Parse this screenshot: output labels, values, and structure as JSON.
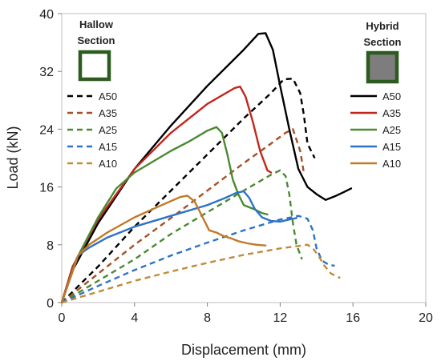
{
  "chart_data": {
    "type": "line",
    "title": "",
    "xlabel": "Displacement (mm)",
    "ylabel": "Load (kN)",
    "xlim": [
      0,
      20
    ],
    "ylim": [
      0,
      40
    ],
    "xticks": [
      0,
      4,
      8,
      12,
      16,
      20
    ],
    "yticks": [
      0,
      8,
      16,
      24,
      32,
      40
    ],
    "grid": false,
    "annotations": {
      "left_line1": "Hallow",
      "left_line2": "Section",
      "right_line1": "Hybrid",
      "right_line2": "Section"
    },
    "legend_left": {
      "placement": "top-left",
      "items": [
        "A50",
        "A35",
        "A25",
        "A15",
        "A10"
      ]
    },
    "legend_right": {
      "placement": "top-right",
      "items": [
        "A50",
        "A35",
        "A25",
        "A15",
        "A10"
      ]
    },
    "series": [
      {
        "name": "A50",
        "group": "Hybrid Section",
        "color": "#000000",
        "dashed": false,
        "x": [
          0,
          0.5,
          2,
          4,
          6,
          8,
          10,
          10.8,
          11.2,
          11.6,
          12,
          12.5,
          13,
          13.5,
          14,
          14.5,
          15,
          15.5,
          15.9
        ],
        "y": [
          0,
          4,
          11,
          18.5,
          24.5,
          30,
          35,
          37.2,
          37.3,
          35,
          30,
          24,
          18.5,
          16,
          15,
          14.2,
          14.7,
          15.3,
          15.8
        ]
      },
      {
        "name": "A35",
        "group": "Hybrid Section",
        "color": "#c0281e",
        "dashed": false,
        "x": [
          0,
          0.6,
          2,
          4,
          6,
          8,
          9.5,
          9.8,
          10.1,
          10.5,
          10.9,
          11.3,
          11.5
        ],
        "y": [
          0,
          5,
          11.5,
          18.5,
          23.5,
          27.5,
          29.7,
          29.9,
          28.5,
          25,
          21,
          18.3,
          18
        ]
      },
      {
        "name": "A25",
        "group": "Hybrid Section",
        "color": "#4a8a32",
        "dashed": false,
        "x": [
          0,
          0.8,
          2,
          3,
          4,
          5,
          6,
          7,
          8,
          8.5,
          8.8,
          9.1,
          9.4,
          9.7,
          10,
          10.5,
          11,
          11.3
        ],
        "y": [
          0,
          6,
          11.8,
          15.8,
          18,
          19.5,
          21,
          22.3,
          23.8,
          24.3,
          23.5,
          20.5,
          17,
          15,
          13.5,
          13,
          12.4,
          12.2
        ]
      },
      {
        "name": "A15",
        "group": "Hybrid Section",
        "color": "#2e73c8",
        "dashed": false,
        "x": [
          0,
          0.9,
          1.5,
          2.5,
          4,
          6,
          8,
          9,
          9.6,
          10,
          10.3,
          10.6,
          11,
          11.5,
          12,
          12.5,
          12.9
        ],
        "y": [
          0,
          6.5,
          7.6,
          9,
          10.5,
          12,
          13.5,
          14.5,
          15.2,
          15.4,
          14.5,
          13,
          11.8,
          11.3,
          11.2,
          11.5,
          11.7
        ]
      },
      {
        "name": "A10",
        "group": "Hybrid Section",
        "color": "#c07a28",
        "dashed": false,
        "x": [
          0,
          0.9,
          1.5,
          2.5,
          4,
          5.5,
          6.5,
          6.9,
          7.3,
          7.7,
          8.1,
          8.5,
          8.9,
          9.3,
          9.7,
          10.2,
          10.7,
          11.2
        ],
        "y": [
          0,
          6.5,
          8,
          9.7,
          11.8,
          13.5,
          14.6,
          14.8,
          14,
          12,
          10,
          9.7,
          9.2,
          8.9,
          8.5,
          8.2,
          8,
          7.9
        ]
      },
      {
        "name": "A50",
        "group": "Hallow Section",
        "color": "#000000",
        "dashed": true,
        "x": [
          0,
          2,
          4,
          6,
          8,
          10,
          11.5,
          12.2,
          12.7,
          13.1,
          13.3,
          13.5,
          13.9
        ],
        "y": [
          0,
          5,
          10.5,
          15.5,
          20.5,
          25.5,
          29,
          30.9,
          31,
          29,
          26,
          22,
          20
        ]
      },
      {
        "name": "A35",
        "group": "Hallow Section",
        "color": "#a65028",
        "dashed": true,
        "x": [
          0,
          2,
          4,
          6,
          8,
          10,
          11.5,
          12.3,
          12.7,
          13.1,
          13.3
        ],
        "y": [
          0,
          4,
          8,
          11.7,
          15.5,
          19.3,
          22,
          23.5,
          24,
          21,
          18
        ]
      },
      {
        "name": "A25",
        "group": "Hallow Section",
        "color": "#4a8a32",
        "dashed": true,
        "x": [
          0,
          2,
          4,
          6,
          8,
          10,
          11.5,
          12,
          12.3,
          12.5,
          12.7,
          12.9,
          13.2
        ],
        "y": [
          0,
          3,
          6,
          9.5,
          12.5,
          15.5,
          17.7,
          18.3,
          17.5,
          15,
          11,
          8,
          6
        ]
      },
      {
        "name": "A15",
        "group": "Hallow Section",
        "color": "#2e73c8",
        "dashed": true,
        "x": [
          0,
          2,
          4,
          6,
          8,
          10,
          12,
          13,
          13.5,
          13.8,
          14,
          14.3,
          14.7,
          15
        ],
        "y": [
          0,
          2.3,
          4.5,
          6.5,
          8.3,
          10,
          11.5,
          12,
          11.6,
          10,
          7.5,
          5.8,
          5.2,
          5.1
        ]
      },
      {
        "name": "A10",
        "group": "Hallow Section",
        "color": "#c08a3a",
        "dashed": true,
        "x": [
          0,
          2,
          4,
          6,
          8,
          10,
          12,
          13.5,
          13.8,
          14.1,
          14.4,
          14.8,
          15.3
        ],
        "y": [
          0,
          1.5,
          3,
          4.3,
          5.5,
          6.6,
          7.5,
          8,
          7.5,
          6.5,
          5.2,
          4,
          3.4
        ]
      }
    ]
  }
}
